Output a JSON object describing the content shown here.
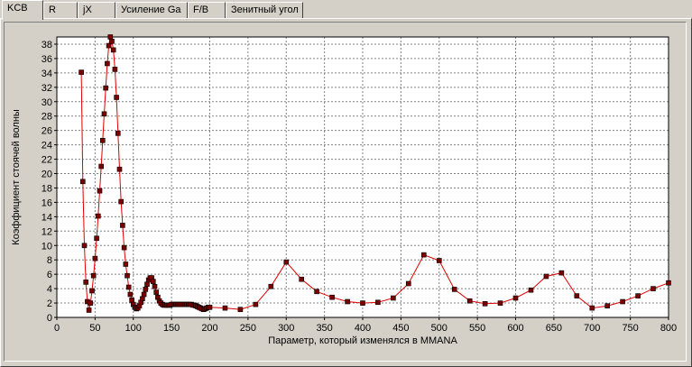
{
  "tabs": [
    {
      "label": "KCB",
      "active": true
    },
    {
      "label": "R",
      "active": false
    },
    {
      "label": "jX",
      "active": false
    },
    {
      "label": "Усиление Ga",
      "active": false
    },
    {
      "label": "F/B",
      "active": false
    },
    {
      "label": "Зенитный угол",
      "active": false
    }
  ],
  "colors": {
    "line": "#e00000",
    "marker_fill": "#7a0000",
    "marker_edge": "#000000",
    "grid": "#808080",
    "plot_bg": "#ffffff"
  },
  "chart_data": {
    "type": "line",
    "title": "",
    "xlabel": "Параметр, который изменялся в MMANA",
    "ylabel": "Коэффициент стоячей волны",
    "xlim": [
      0,
      800
    ],
    "ylim": [
      0,
      39
    ],
    "xticks": [
      0,
      50,
      100,
      150,
      200,
      250,
      300,
      350,
      400,
      450,
      500,
      550,
      600,
      650,
      700,
      750,
      800
    ],
    "yticks": [
      0,
      2,
      4,
      6,
      8,
      10,
      12,
      14,
      16,
      18,
      20,
      22,
      24,
      26,
      28,
      30,
      32,
      34,
      36,
      38
    ],
    "grid": true,
    "series": [
      {
        "x": [
          32,
          34,
          36,
          38,
          40,
          42,
          44,
          46,
          48,
          50,
          52,
          54,
          56,
          58,
          60,
          62,
          64,
          66,
          68,
          70,
          72,
          74,
          76,
          78,
          80,
          82,
          84,
          86,
          88,
          90,
          92,
          94,
          96,
          98,
          100,
          102,
          104,
          106,
          108,
          110,
          112,
          114,
          116,
          118,
          120,
          122,
          124,
          126,
          128,
          130,
          132,
          134,
          136,
          138,
          140,
          142,
          144,
          146,
          148,
          150,
          152,
          154,
          156,
          158,
          160,
          162,
          164,
          166,
          168,
          170,
          172,
          174,
          176,
          178,
          180,
          182,
          184,
          186,
          188,
          190,
          192,
          194,
          196,
          198,
          200,
          220,
          240,
          260,
          280,
          300,
          320,
          340,
          360,
          380,
          400,
          420,
          440,
          460,
          480,
          500,
          520,
          540,
          560,
          580,
          600,
          620,
          640,
          660,
          680,
          700,
          720,
          740,
          760,
          780,
          800
        ],
        "y": [
          34.1,
          18.9,
          10.0,
          4.9,
          2.2,
          1.0,
          2.0,
          3.7,
          5.8,
          8.2,
          11.0,
          14.1,
          17.6,
          21.0,
          24.6,
          28.3,
          31.9,
          35.3,
          37.8,
          39.0,
          38.4,
          37.2,
          34.5,
          30.6,
          25.6,
          20.6,
          16.1,
          12.8,
          9.7,
          7.4,
          5.8,
          4.2,
          3.2,
          2.4,
          1.8,
          1.4,
          1.2,
          1.3,
          1.6,
          2.1,
          2.6,
          3.2,
          3.9,
          4.6,
          5.2,
          5.5,
          5.5,
          5.0,
          4.3,
          3.5,
          2.8,
          2.3,
          2.0,
          1.8,
          1.7,
          1.7,
          1.7,
          1.7,
          1.7,
          1.8,
          1.8,
          1.8,
          1.8,
          1.8,
          1.8,
          1.8,
          1.8,
          1.8,
          1.8,
          1.8,
          1.8,
          1.8,
          1.8,
          1.7,
          1.7,
          1.6,
          1.5,
          1.4,
          1.3,
          1.2,
          1.1,
          1.2,
          1.3,
          1.4,
          1.4,
          1.3,
          1.1,
          1.8,
          4.3,
          7.7,
          5.3,
          3.6,
          2.8,
          2.2,
          2.0,
          2.1,
          2.7,
          4.7,
          8.7,
          7.9,
          3.9,
          2.3,
          1.9,
          2.0,
          2.7,
          3.8,
          5.7,
          6.2,
          3.0,
          1.3,
          1.6,
          2.2,
          3.0,
          4.0,
          4.8
        ]
      }
    ]
  }
}
